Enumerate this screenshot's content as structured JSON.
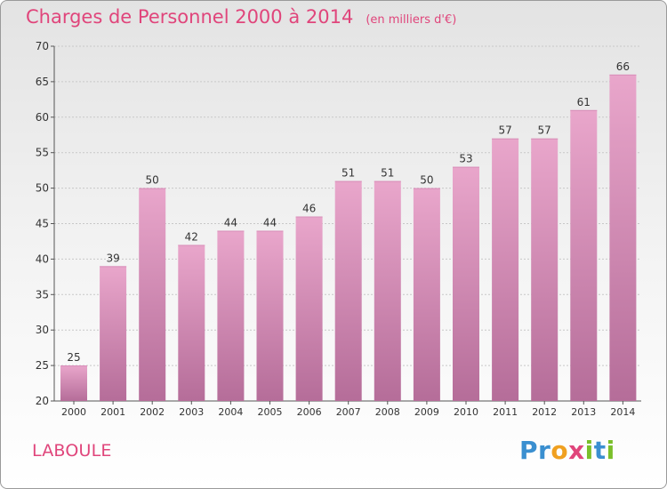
{
  "title": "Charges de Personnel 2000 à 2014",
  "unit": "(en milliers d'€)",
  "commune": "LABOULE",
  "logo": {
    "text": "Proxiti",
    "letters": [
      {
        "ch": "P",
        "color": "#3a8fd0"
      },
      {
        "ch": "r",
        "color": "#3a8fd0"
      },
      {
        "ch": "o",
        "color": "#f0a020"
      },
      {
        "ch": "x",
        "color": "#e0457b"
      },
      {
        "ch": "i",
        "color": "#7abf2a"
      },
      {
        "ch": "t",
        "color": "#3a8fd0"
      },
      {
        "ch": "i",
        "color": "#7abf2a"
      }
    ]
  },
  "colors": {
    "accent": "#e0457b",
    "bar_top": "#e9a6cb",
    "bar_bottom": "#b56d99",
    "axis_text": "#333333",
    "grid": "#c8c8c8"
  },
  "chart_data": {
    "type": "bar",
    "categories": [
      "2000",
      "2001",
      "2002",
      "2003",
      "2004",
      "2005",
      "2006",
      "2007",
      "2008",
      "2009",
      "2010",
      "2011",
      "2012",
      "2013",
      "2014"
    ],
    "values": [
      25,
      39,
      50,
      42,
      44,
      44,
      46,
      51,
      51,
      50,
      53,
      57,
      57,
      61,
      66
    ],
    "ylim": [
      20,
      70
    ],
    "yticks": [
      20,
      25,
      30,
      35,
      40,
      45,
      50,
      55,
      60,
      65,
      70
    ],
    "grid": true,
    "data_labels": true
  }
}
